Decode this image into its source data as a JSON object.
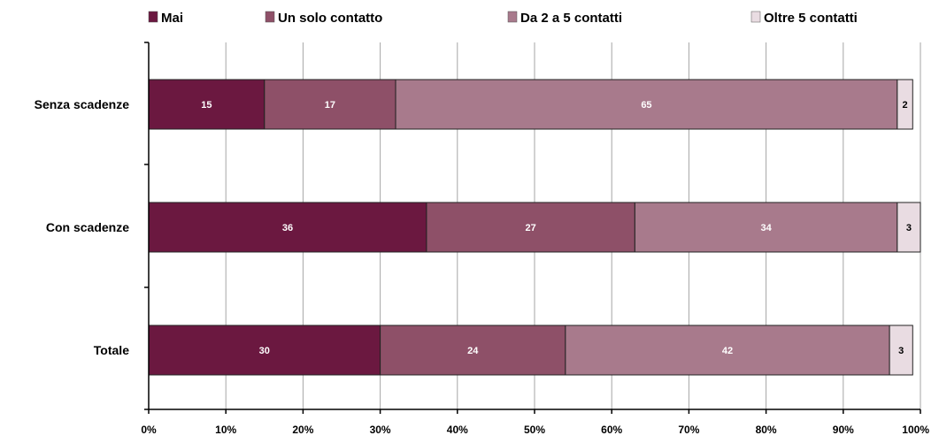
{
  "chart_data": {
    "type": "bar",
    "orientation": "horizontal",
    "stacked": true,
    "percent_stacked": true,
    "categories": [
      "Senza scadenze",
      "Con scadenze",
      "Totale"
    ],
    "series": [
      {
        "name": "Mai",
        "values": [
          15,
          36,
          30
        ],
        "color": "#6b1840"
      },
      {
        "name": "Un solo contatto",
        "values": [
          17,
          27,
          24
        ],
        "color": "#8e5068"
      },
      {
        "name": "Da 2 a 5 contatti",
        "values": [
          65,
          34,
          42
        ],
        "color": "#a87a8c"
      },
      {
        "name": "Oltre 5 contatti",
        "values": [
          2,
          3,
          3
        ],
        "color": "#e9dce2"
      }
    ],
    "x_ticks": [
      "0%",
      "10%",
      "20%",
      "30%",
      "40%",
      "50%",
      "60%",
      "70%",
      "80%",
      "90%",
      "100%"
    ],
    "xlim": [
      0,
      100
    ],
    "grid": true,
    "legend_position": "top",
    "title": "",
    "xlabel": "",
    "ylabel": ""
  }
}
